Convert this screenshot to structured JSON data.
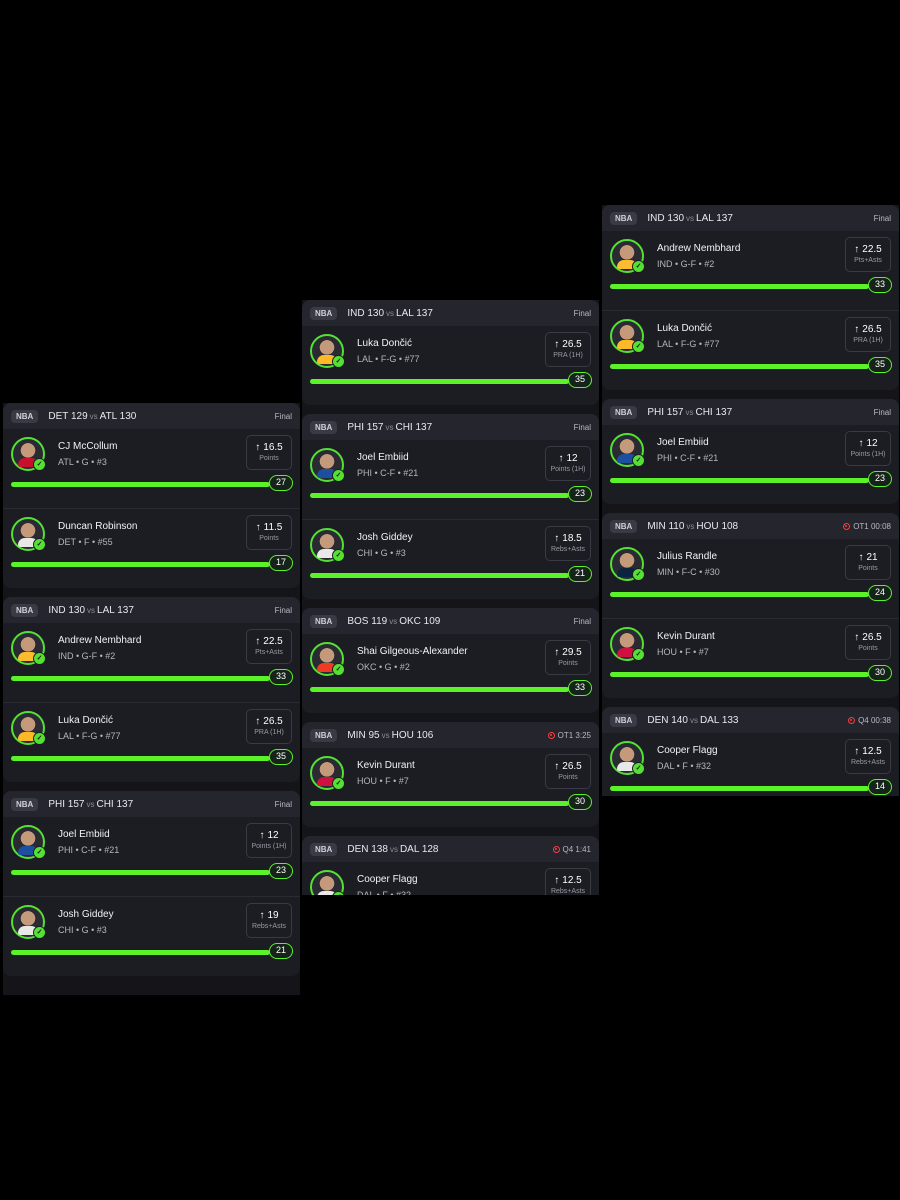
{
  "columns": [
    {
      "cards": [
        {
          "league": "NBA",
          "away": "DET",
          "away_score": "129",
          "vs": "vs",
          "home": "ATL",
          "home_score": "130",
          "status": "Final",
          "live": false,
          "picks": [
            {
              "name": "CJ McCollum",
              "info": "ATL • G • #3",
              "line": "16.5",
              "stat": "Points",
              "actual": "27",
              "progress": 1.0,
              "jersey": "#c8102e"
            },
            {
              "name": "Duncan Robinson",
              "info": "DET • F • #55",
              "line": "11.5",
              "stat": "Points",
              "actual": "17",
              "progress": 1.0,
              "jersey": "#e8e8e8"
            }
          ]
        },
        {
          "league": "NBA",
          "away": "IND",
          "away_score": "130",
          "vs": "vs",
          "home": "LAL",
          "home_score": "137",
          "status": "Final",
          "live": false,
          "picks": [
            {
              "name": "Andrew Nembhard",
              "info": "IND • G-F • #2",
              "line": "22.5",
              "stat": "Pts+Asts",
              "actual": "33",
              "progress": 1.0,
              "jersey": "#fdbb30"
            },
            {
              "name": "Luka Dončić",
              "info": "LAL • F-G • #77",
              "line": "26.5",
              "stat": "PRA (1H)",
              "actual": "35",
              "progress": 1.0,
              "jersey": "#fdb927"
            }
          ]
        },
        {
          "league": "NBA",
          "away": "PHI",
          "away_score": "157",
          "vs": "vs",
          "home": "CHI",
          "home_score": "137",
          "status": "Final",
          "live": false,
          "picks": [
            {
              "name": "Joel Embiid",
              "info": "PHI • C-F • #21",
              "line": "12",
              "stat": "Points (1H)",
              "actual": "23",
              "progress": 1.0,
              "jersey": "#1d4fa0"
            },
            {
              "name": "Josh Giddey",
              "info": "CHI • G • #3",
              "line": "19",
              "stat": "Rebs+Asts",
              "actual": "21",
              "progress": 1.0,
              "jersey": "#e8e8e8"
            }
          ]
        }
      ]
    },
    {
      "cards": [
        {
          "league": "NBA",
          "away": "IND",
          "away_score": "130",
          "vs": "vs",
          "home": "LAL",
          "home_score": "137",
          "status": "Final",
          "live": false,
          "picks": [
            {
              "name": "Luka Dončić",
              "info": "LAL • F-G • #77",
              "line": "26.5",
              "stat": "PRA (1H)",
              "actual": "35",
              "progress": 1.0,
              "jersey": "#fdb927"
            }
          ]
        },
        {
          "league": "NBA",
          "away": "PHI",
          "away_score": "157",
          "vs": "vs",
          "home": "CHI",
          "home_score": "137",
          "status": "Final",
          "live": false,
          "picks": [
            {
              "name": "Joel Embiid",
              "info": "PHI • C-F • #21",
              "line": "12",
              "stat": "Points (1H)",
              "actual": "23",
              "progress": 1.0,
              "jersey": "#1d4fa0"
            },
            {
              "name": "Josh Giddey",
              "info": "CHI • G • #3",
              "line": "18.5",
              "stat": "Rebs+Asts",
              "actual": "21",
              "progress": 1.0,
              "jersey": "#e8e8e8"
            }
          ]
        },
        {
          "league": "NBA",
          "away": "BOS",
          "away_score": "119",
          "vs": "vs",
          "home": "OKC",
          "home_score": "109",
          "status": "Final",
          "live": false,
          "picks": [
            {
              "name": "Shai Gilgeous-Alexander",
              "info": "OKC • G • #2",
              "line": "29.5",
              "stat": "Points",
              "actual": "33",
              "progress": 1.0,
              "jersey": "#ef3b24"
            }
          ]
        },
        {
          "league": "NBA",
          "away": "MIN",
          "away_score": "95",
          "vs": "vs",
          "home": "HOU",
          "home_score": "106",
          "status": "OT1 3:25",
          "live": true,
          "picks": [
            {
              "name": "Kevin Durant",
              "info": "HOU • F • #7",
              "line": "26.5",
              "stat": "Points",
              "actual": "30",
              "progress": 1.0,
              "jersey": "#ce1141"
            }
          ]
        },
        {
          "league": "NBA",
          "away": "DEN",
          "away_score": "138",
          "vs": "vs",
          "home": "DAL",
          "home_score": "128",
          "status": "Q4 1:41",
          "live": true,
          "picks": [
            {
              "name": "Cooper Flagg",
              "info": "DAL • F • #32",
              "line": "12.5",
              "stat": "Rebs+Asts",
              "actual": "",
              "progress": 0.0,
              "jersey": "#e8e8e8"
            }
          ]
        }
      ]
    },
    {
      "cards": [
        {
          "league": "NBA",
          "away": "IND",
          "away_score": "130",
          "vs": "vs",
          "home": "LAL",
          "home_score": "137",
          "status": "Final",
          "live": false,
          "picks": [
            {
              "name": "Andrew Nembhard",
              "info": "IND • G-F • #2",
              "line": "22.5",
              "stat": "Pts+Asts",
              "actual": "33",
              "progress": 1.0,
              "jersey": "#fdbb30"
            },
            {
              "name": "Luka Dončić",
              "info": "LAL • F-G • #77",
              "line": "26.5",
              "stat": "PRA (1H)",
              "actual": "35",
              "progress": 1.0,
              "jersey": "#fdb927"
            }
          ]
        },
        {
          "league": "NBA",
          "away": "PHI",
          "away_score": "157",
          "vs": "vs",
          "home": "CHI",
          "home_score": "137",
          "status": "Final",
          "live": false,
          "picks": [
            {
              "name": "Joel Embiid",
              "info": "PHI • C-F • #21",
              "line": "12",
              "stat": "Points (1H)",
              "actual": "23",
              "progress": 1.0,
              "jersey": "#1d4fa0"
            }
          ]
        },
        {
          "league": "NBA",
          "away": "MIN",
          "away_score": "110",
          "vs": "vs",
          "home": "HOU",
          "home_score": "108",
          "status": "OT1 00:08",
          "live": true,
          "picks": [
            {
              "name": "Julius Randle",
              "info": "MIN • F-C • #30",
              "line": "21",
              "stat": "Points",
              "actual": "24",
              "progress": 1.0,
              "jersey": "#0c2340"
            },
            {
              "name": "Kevin Durant",
              "info": "HOU • F • #7",
              "line": "26.5",
              "stat": "Points",
              "actual": "30",
              "progress": 1.0,
              "jersey": "#ce1141"
            }
          ]
        },
        {
          "league": "NBA",
          "away": "DEN",
          "away_score": "140",
          "vs": "vs",
          "home": "DAL",
          "home_score": "133",
          "status": "Q4 00:38",
          "live": true,
          "picks": [
            {
              "name": "Cooper Flagg",
              "info": "DAL • F • #32",
              "line": "12.5",
              "stat": "Rebs+Asts",
              "actual": "14",
              "progress": 1.0,
              "jersey": "#e8e8e8"
            }
          ]
        }
      ]
    }
  ],
  "icons": {
    "arrow": "↑",
    "check": "✓"
  }
}
